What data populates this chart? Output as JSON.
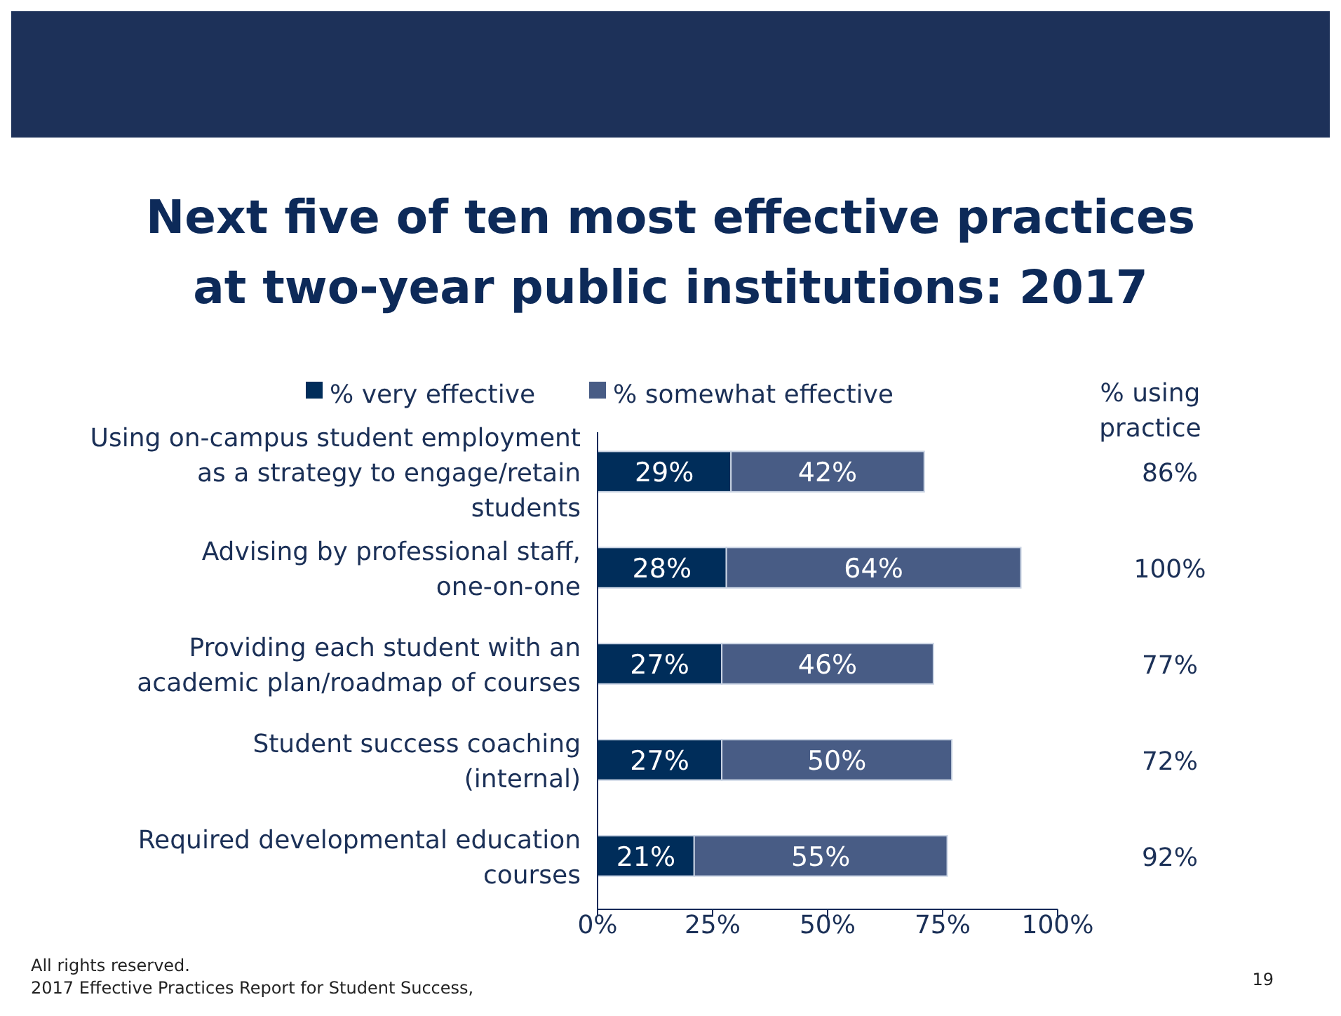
{
  "chart_data": {
    "type": "bar",
    "orientation": "horizontal",
    "stacked": true,
    "title": "Next five of ten most effective practices at two-year public institutions: 2017",
    "categories": [
      "Using on-campus student employment as a strategy to engage/retain students",
      "Advising by professional staff, one-on-one",
      "Providing each student with an academic plan/roadmap of courses",
      "Student success coaching (internal)",
      "Required developmental education courses"
    ],
    "series": [
      {
        "name": "% very effective",
        "color": "#002d5a",
        "values": [
          29,
          28,
          27,
          27,
          21
        ],
        "value_labels": [
          "29%",
          "28%",
          "27%",
          "27%",
          "21%"
        ]
      },
      {
        "name": "% somewhat effective",
        "color": "#485c85",
        "values": [
          42,
          64,
          46,
          50,
          55
        ],
        "value_labels": [
          "42%",
          "64%",
          "46%",
          "50%",
          "55%"
        ]
      }
    ],
    "xlim": [
      0,
      100
    ],
    "xticks": [
      {
        "value": 0,
        "label": "0%"
      },
      {
        "value": 25,
        "label": "25%"
      },
      {
        "value": 50,
        "label": "50%"
      },
      {
        "value": 75,
        "label": "75%"
      },
      {
        "value": 100,
        "label": "100%"
      }
    ],
    "legend": "top",
    "annotations": [
      "% using practice",
      "86%",
      "100%",
      "77%",
      "72%",
      "92%",
      "All rights reserved.",
      "2017 Effective Practices Report for Student Success,",
      "19"
    ]
  }
}
